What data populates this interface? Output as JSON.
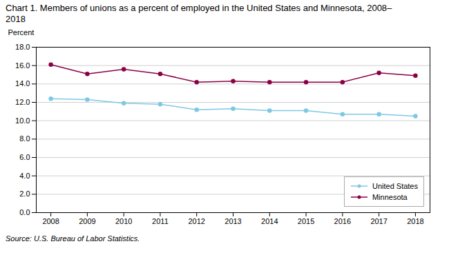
{
  "chart_data": {
    "type": "line",
    "title": "Chart 1. Members of unions as a percent of employed in the United States and Minnesota, 2008–\n2018",
    "ylabel": "Percent",
    "source": "Source: U.S. Bureau of Labor Statistics.",
    "x": [
      2008,
      2009,
      2010,
      2011,
      2012,
      2013,
      2014,
      2015,
      2016,
      2017,
      2018
    ],
    "series": [
      {
        "name": "United States",
        "color": "#7EC8E3",
        "values": [
          12.4,
          12.3,
          11.9,
          11.8,
          11.2,
          11.3,
          11.1,
          11.1,
          10.7,
          10.7,
          10.5
        ]
      },
      {
        "name": "Minnesota",
        "color": "#8B0045",
        "values": [
          16.1,
          15.1,
          15.6,
          15.1,
          14.2,
          14.3,
          14.2,
          14.2,
          14.2,
          15.2,
          14.9
        ]
      }
    ],
    "xlim": [
      2007.6,
      2018.4
    ],
    "xticks": [
      2008,
      2009,
      2010,
      2011,
      2012,
      2013,
      2014,
      2015,
      2016,
      2017,
      2018
    ],
    "ylim": [
      0,
      18.0
    ],
    "yticks": [
      {
        "value": 0,
        "label": "0.0"
      },
      {
        "value": 2,
        "label": "2.0"
      },
      {
        "value": 4,
        "label": "4.0"
      },
      {
        "value": 6,
        "label": "6.0"
      },
      {
        "value": 8,
        "label": "8.0"
      },
      {
        "value": 10,
        "label": "10.0"
      },
      {
        "value": 12,
        "label": "12.0"
      },
      {
        "value": 14,
        "label": "14.0"
      },
      {
        "value": 16,
        "label": "16.0"
      },
      {
        "value": 18,
        "label": "18.0"
      }
    ],
    "grid": "y",
    "legend": "lower right",
    "marker": "circle",
    "line_style": "solid"
  }
}
